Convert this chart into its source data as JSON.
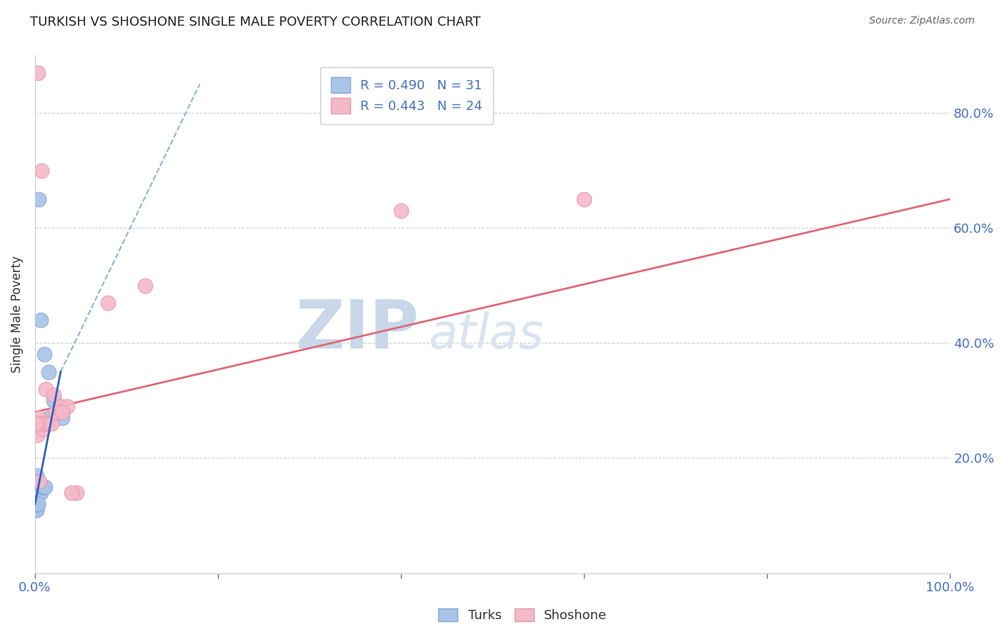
{
  "title": "TURKISH VS SHOSHONE SINGLE MALE POVERTY CORRELATION CHART",
  "source": "Source: ZipAtlas.com",
  "ylabel": "Single Male Poverty",
  "turks_R": 0.49,
  "turks_N": 31,
  "shoshone_R": 0.443,
  "shoshone_N": 24,
  "turks_color": "#a8c4e8",
  "turks_edge": "#88a8d8",
  "shoshone_color": "#f4b8c8",
  "shoshone_edge": "#e898a8",
  "turks_line_color": "#3060c0",
  "turks_dash_color": "#88b4e0",
  "shoshone_line_color": "#e06878",
  "turks_x": [
    0.4,
    0.6,
    1.0,
    1.5,
    2.0,
    2.5,
    3.0,
    0.15,
    0.2,
    0.25,
    0.3,
    0.35,
    0.4,
    0.5,
    0.55,
    0.65,
    0.75,
    0.85,
    0.95,
    1.1,
    1.3,
    1.6,
    0.08,
    0.1,
    0.12,
    0.14,
    0.16,
    0.18,
    0.22,
    0.28,
    0.32
  ],
  "turks_y": [
    65.0,
    44.0,
    38.0,
    35.0,
    30.0,
    28.0,
    27.0,
    17.0,
    16.0,
    15.0,
    15.0,
    15.0,
    14.0,
    14.0,
    14.0,
    14.0,
    15.0,
    15.0,
    15.0,
    15.0,
    26.0,
    27.0,
    12.0,
    12.0,
    11.0,
    11.0,
    12.0,
    12.0,
    12.0,
    12.0,
    12.0
  ],
  "shoshone_x": [
    0.3,
    0.7,
    1.2,
    2.0,
    2.8,
    3.5,
    4.5,
    0.15,
    0.25,
    0.45,
    0.6,
    0.85,
    1.0,
    1.4,
    1.8,
    2.3,
    3.0,
    4.0,
    0.1,
    0.5,
    8.0,
    12.0,
    40.0,
    60.0
  ],
  "shoshone_y": [
    87.0,
    70.0,
    32.0,
    31.0,
    29.0,
    29.0,
    14.0,
    26.0,
    24.0,
    27.0,
    26.0,
    25.0,
    26.0,
    26.0,
    26.0,
    28.0,
    28.0,
    14.0,
    26.0,
    16.0,
    47.0,
    50.0,
    63.0,
    65.0
  ],
  "xlim": [
    0.0,
    100.0
  ],
  "ylim": [
    0.0,
    90.0
  ],
  "ytick_right_labels": [
    "20.0%",
    "40.0%",
    "60.0%",
    "80.0%"
  ],
  "ytick_right_values": [
    20.0,
    40.0,
    60.0,
    80.0
  ],
  "title_color": "#222222",
  "axis_label_color": "#333333",
  "tick_color": "#4472c4",
  "grid_color": "#cccccc",
  "watermark_zip_color": "#c8d8e8",
  "watermark_atlas_color": "#d8e4f0",
  "legend_text_color": "#4472c4",
  "shoshone_line_start_x": 0.0,
  "shoshone_line_start_y": 28.0,
  "shoshone_line_end_x": 100.0,
  "shoshone_line_end_y": 65.0,
  "turks_solid_start_x": 0.0,
  "turks_solid_start_y": 12.0,
  "turks_solid_end_x": 2.8,
  "turks_solid_end_y": 35.0,
  "turks_dash_start_x": 2.8,
  "turks_dash_start_y": 35.0,
  "turks_dash_end_x": 18.0,
  "turks_dash_end_y": 85.0
}
